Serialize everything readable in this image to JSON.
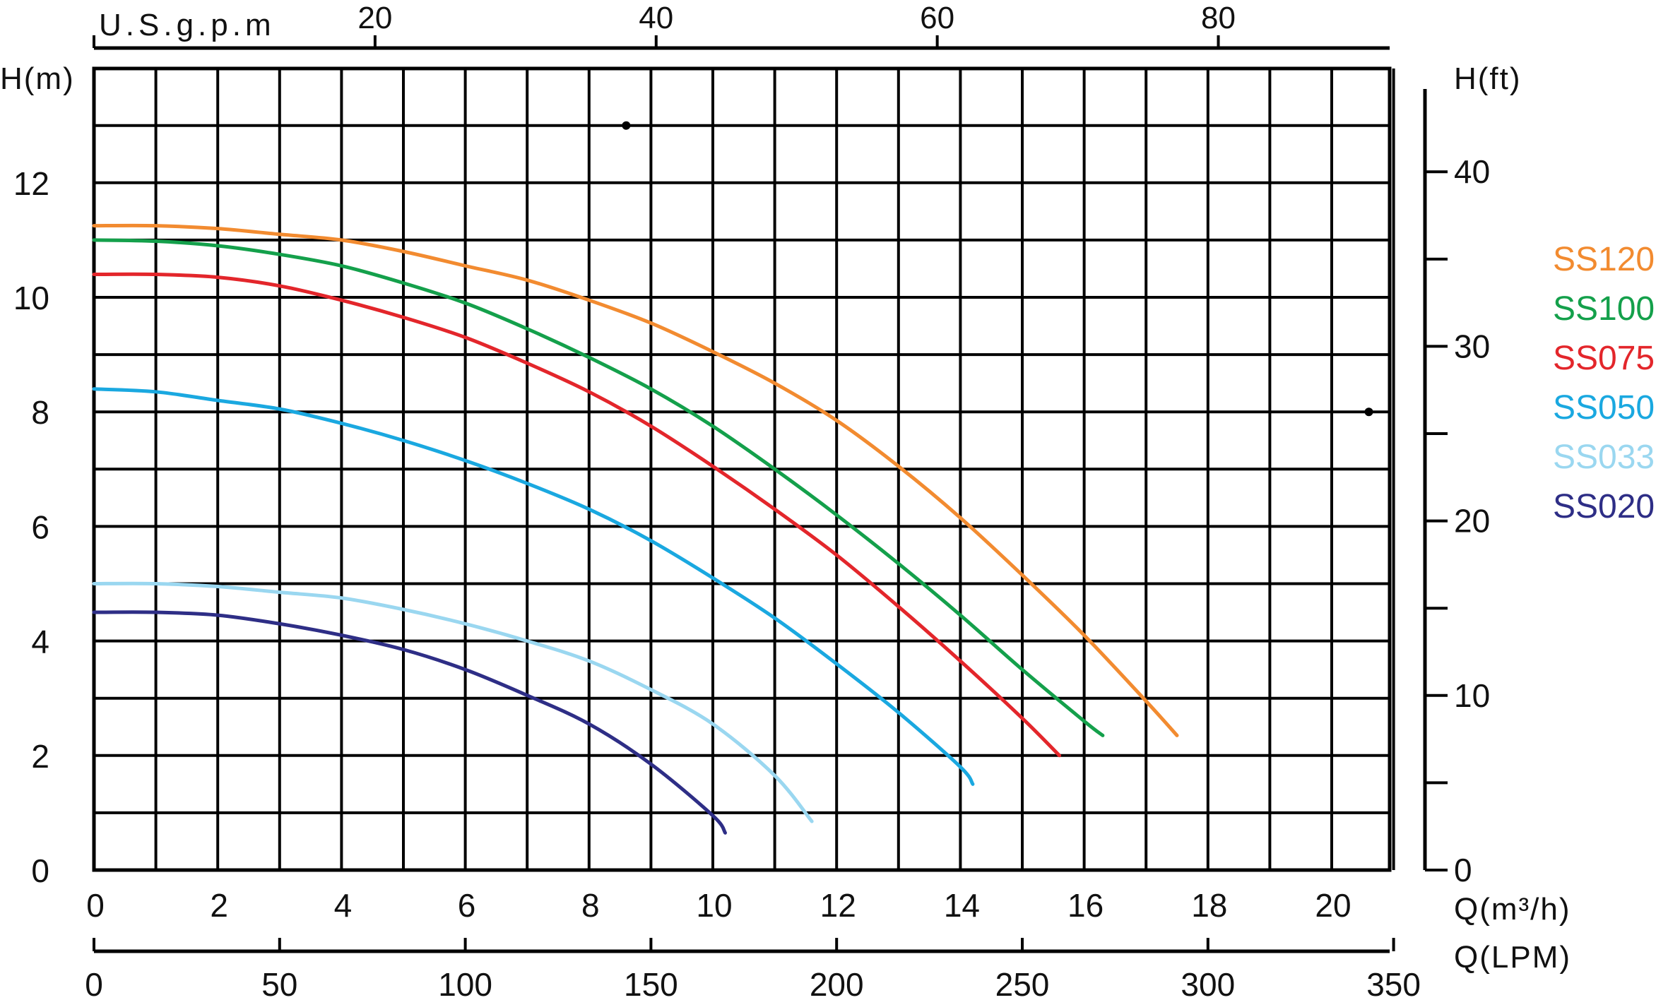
{
  "chart_data": {
    "type": "line",
    "x_label_bottom_primary": "Q(m³/h)",
    "x_label_bottom_lpm": "Q(LPM)",
    "x_label_top": "U.S.g.p.m",
    "y_label_left": "H(m)",
    "y_label_right": "H(ft)",
    "xlim": [
      0,
      21
    ],
    "ylim": [
      0,
      14
    ],
    "x_ticks": [
      "0",
      "2",
      "4",
      "6",
      "8",
      "10",
      "12",
      "14",
      "16",
      "18",
      "20"
    ],
    "y_ticks": [
      "0",
      "2",
      "4",
      "6",
      "8",
      "10",
      "12"
    ],
    "lpm_ticks": [
      "0",
      "50",
      "100",
      "150",
      "200",
      "250",
      "300",
      "350"
    ],
    "gpm_ticks": [
      "20",
      "40",
      "60",
      "80"
    ],
    "ft_ticks": [
      "0",
      "10",
      "20",
      "30",
      "40"
    ],
    "grid": true,
    "legend_position": "right",
    "series": [
      {
        "name": "SS120",
        "color": "#F28B30",
        "x": [
          0,
          1,
          2,
          3,
          4,
          5,
          6,
          7,
          8,
          9,
          10,
          11,
          12,
          13,
          14,
          15,
          16,
          17,
          17.5
        ],
        "y": [
          11.25,
          11.25,
          11.2,
          11.1,
          11.0,
          10.8,
          10.55,
          10.3,
          9.95,
          9.55,
          9.05,
          8.5,
          7.85,
          7.05,
          6.15,
          5.15,
          4.1,
          2.95,
          2.35
        ]
      },
      {
        "name": "SS100",
        "color": "#14A04B",
        "x": [
          0,
          1,
          2,
          3,
          4,
          5,
          6,
          7,
          8,
          9,
          10,
          11,
          12,
          13,
          14,
          15,
          16,
          16.3
        ],
        "y": [
          11.0,
          10.98,
          10.9,
          10.75,
          10.55,
          10.25,
          9.9,
          9.45,
          8.95,
          8.4,
          7.75,
          7.0,
          6.2,
          5.35,
          4.45,
          3.5,
          2.6,
          2.35
        ]
      },
      {
        "name": "SS075",
        "color": "#E3262B",
        "x": [
          0,
          1,
          2,
          3,
          4,
          5,
          6,
          7,
          8,
          9,
          10,
          11,
          12,
          13,
          14,
          15,
          15.6
        ],
        "y": [
          10.4,
          10.4,
          10.35,
          10.2,
          9.95,
          9.65,
          9.3,
          8.85,
          8.35,
          7.75,
          7.05,
          6.3,
          5.5,
          4.6,
          3.65,
          2.65,
          2.0
        ]
      },
      {
        "name": "SS050",
        "color": "#1AA8E0",
        "x": [
          0,
          1,
          2,
          3,
          4,
          5,
          6,
          7,
          8,
          9,
          10,
          11,
          12,
          13,
          14,
          14.2
        ],
        "y": [
          8.4,
          8.35,
          8.2,
          8.05,
          7.8,
          7.5,
          7.15,
          6.75,
          6.3,
          5.75,
          5.1,
          4.4,
          3.6,
          2.75,
          1.8,
          1.5
        ]
      },
      {
        "name": "SS033",
        "color": "#9AD7F0",
        "x": [
          0,
          1,
          2,
          3,
          4,
          5,
          6,
          7,
          8,
          9,
          10,
          11,
          11.6
        ],
        "y": [
          5.0,
          5.0,
          4.95,
          4.85,
          4.75,
          4.55,
          4.3,
          4.0,
          3.65,
          3.15,
          2.55,
          1.65,
          0.85
        ]
      },
      {
        "name": "SS020",
        "color": "#2E2E86",
        "x": [
          0,
          1,
          2,
          3,
          4,
          5,
          6,
          7,
          8,
          9,
          10,
          10.2
        ],
        "y": [
          4.5,
          4.5,
          4.45,
          4.3,
          4.1,
          3.85,
          3.5,
          3.05,
          2.55,
          1.85,
          0.95,
          0.65
        ]
      }
    ],
    "markers": [
      {
        "x": 8.6,
        "y": 13.0
      },
      {
        "x": 20.6,
        "y": 8.0
      }
    ]
  }
}
